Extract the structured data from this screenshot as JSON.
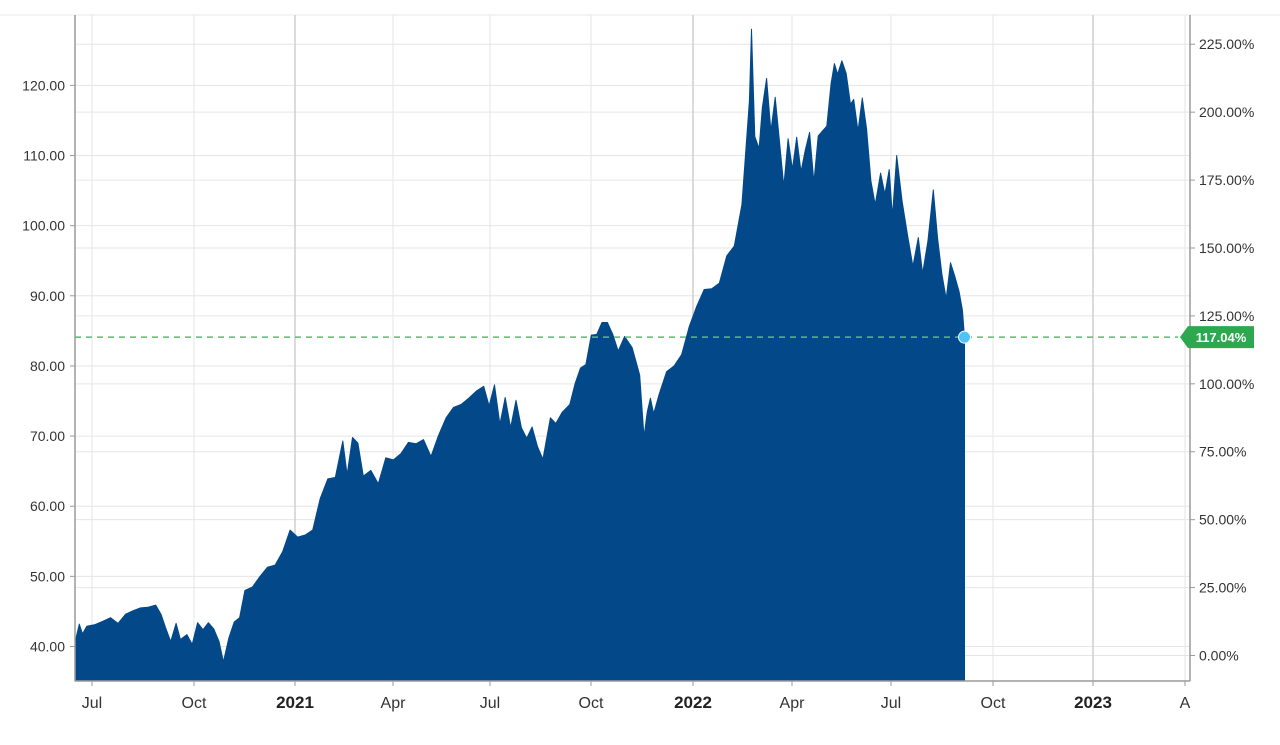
{
  "chart_data": {
    "type": "area",
    "title": "",
    "x_tick_labels": [
      "Jul",
      "Oct",
      "2021",
      "Apr",
      "Jul",
      "Oct",
      "2022",
      "Apr",
      "Jul",
      "Oct",
      "2023",
      "A"
    ],
    "y_left": {
      "ticks": [
        "40.00",
        "50.00",
        "60.00",
        "70.00",
        "80.00",
        "90.00",
        "100.00",
        "110.00",
        "120.00"
      ],
      "range": [
        35.3,
        130.6
      ]
    },
    "y_right": {
      "ticks": [
        "0.00%",
        "25.00%",
        "50.00%",
        "75.00%",
        "100.00%",
        "125.00%",
        "150.00%",
        "175.00%",
        "200.00%",
        "225.00%"
      ],
      "range": [
        -9.2,
        235.6
      ]
    },
    "x_range": [
      "2020-06-19",
      "2023-04-17"
    ],
    "series": [
      {
        "color": "#03498a",
        "points": [
          [
            "2020-06-19",
            40.6
          ],
          [
            "2020-06-23",
            43.2
          ],
          [
            "2020-06-26",
            41.8
          ],
          [
            "2020-06-30",
            42.9
          ],
          [
            "2020-07-07",
            43.1
          ],
          [
            "2020-07-15",
            43.6
          ],
          [
            "2020-07-22",
            44.1
          ],
          [
            "2020-07-29",
            43.3
          ],
          [
            "2020-08-05",
            44.6
          ],
          [
            "2020-08-12",
            45.1
          ],
          [
            "2020-08-19",
            45.5
          ],
          [
            "2020-08-26",
            45.6
          ],
          [
            "2020-09-02",
            45.9
          ],
          [
            "2020-09-07",
            44.6
          ],
          [
            "2020-09-11",
            42.8
          ],
          [
            "2020-09-16",
            40.7
          ],
          [
            "2020-09-21",
            43.3
          ],
          [
            "2020-09-25",
            41.0
          ],
          [
            "2020-10-01",
            41.7
          ],
          [
            "2020-10-06",
            40.3
          ],
          [
            "2020-10-11",
            43.4
          ],
          [
            "2020-10-16",
            42.4
          ],
          [
            "2020-10-21",
            43.4
          ],
          [
            "2020-10-26",
            42.5
          ],
          [
            "2020-10-31",
            40.7
          ],
          [
            "2020-11-04",
            37.8
          ],
          [
            "2020-11-09",
            41.2
          ],
          [
            "2020-11-14",
            43.5
          ],
          [
            "2020-11-19",
            44.1
          ],
          [
            "2020-11-24",
            48.0
          ],
          [
            "2020-12-01",
            48.5
          ],
          [
            "2020-12-08",
            50.0
          ],
          [
            "2020-12-15",
            51.3
          ],
          [
            "2020-12-22",
            51.6
          ],
          [
            "2020-12-29",
            53.5
          ],
          [
            "2021-01-05",
            56.6
          ],
          [
            "2021-01-12",
            55.6
          ],
          [
            "2021-01-19",
            55.9
          ],
          [
            "2021-01-26",
            56.6
          ],
          [
            "2021-02-02",
            61.1
          ],
          [
            "2021-02-09",
            63.9
          ],
          [
            "2021-02-16",
            64.1
          ],
          [
            "2021-02-23",
            69.3
          ],
          [
            "2021-02-27",
            64.5
          ],
          [
            "2021-03-04",
            69.8
          ],
          [
            "2021-03-09",
            69.0
          ],
          [
            "2021-03-14",
            64.3
          ],
          [
            "2021-03-21",
            65.1
          ],
          [
            "2021-03-28",
            63.2
          ],
          [
            "2021-04-04",
            66.9
          ],
          [
            "2021-04-11",
            66.6
          ],
          [
            "2021-04-18",
            67.5
          ],
          [
            "2021-04-25",
            69.1
          ],
          [
            "2021-05-02",
            68.9
          ],
          [
            "2021-05-09",
            69.5
          ],
          [
            "2021-05-16",
            67.1
          ],
          [
            "2021-05-23",
            70.1
          ],
          [
            "2021-05-30",
            72.6
          ],
          [
            "2021-06-06",
            74.1
          ],
          [
            "2021-06-13",
            74.5
          ],
          [
            "2021-06-20",
            75.4
          ],
          [
            "2021-06-27",
            76.4
          ],
          [
            "2021-07-04",
            77.1
          ],
          [
            "2021-07-09",
            74.3
          ],
          [
            "2021-07-14",
            77.3
          ],
          [
            "2021-07-19",
            71.7
          ],
          [
            "2021-07-24",
            75.5
          ],
          [
            "2021-07-29",
            71.2
          ],
          [
            "2021-08-03",
            75.1
          ],
          [
            "2021-08-08",
            71.2
          ],
          [
            "2021-08-13",
            69.7
          ],
          [
            "2021-08-18",
            71.3
          ],
          [
            "2021-08-23",
            68.5
          ],
          [
            "2021-08-28",
            66.7
          ],
          [
            "2021-09-04",
            72.6
          ],
          [
            "2021-09-09",
            71.8
          ],
          [
            "2021-09-15",
            73.4
          ],
          [
            "2021-09-22",
            74.5
          ],
          [
            "2021-09-27",
            77.5
          ],
          [
            "2021-10-02",
            79.7
          ],
          [
            "2021-10-07",
            80.2
          ],
          [
            "2021-10-12",
            84.4
          ],
          [
            "2021-10-17",
            84.5
          ],
          [
            "2021-10-22",
            86.2
          ],
          [
            "2021-10-27",
            86.2
          ],
          [
            "2021-11-01",
            84.5
          ],
          [
            "2021-11-06",
            82.1
          ],
          [
            "2021-11-12",
            84.2
          ],
          [
            "2021-11-19",
            82.6
          ],
          [
            "2021-11-26",
            78.7
          ],
          [
            "2021-11-30",
            69.9
          ],
          [
            "2021-12-03",
            73.4
          ],
          [
            "2021-12-06",
            75.4
          ],
          [
            "2021-12-09",
            73.2
          ],
          [
            "2021-12-14",
            75.9
          ],
          [
            "2021-12-21",
            79.2
          ],
          [
            "2021-12-28",
            80.0
          ],
          [
            "2022-01-04",
            81.6
          ],
          [
            "2022-01-11",
            85.6
          ],
          [
            "2022-01-18",
            88.5
          ],
          [
            "2022-01-25",
            90.9
          ],
          [
            "2022-02-01",
            91.0
          ],
          [
            "2022-02-08",
            91.8
          ],
          [
            "2022-02-15",
            95.7
          ],
          [
            "2022-02-22",
            97.1
          ],
          [
            "2022-03-01",
            103.0
          ],
          [
            "2022-03-08",
            117.8
          ],
          [
            "2022-03-10",
            128.0
          ],
          [
            "2022-03-13",
            112.7
          ],
          [
            "2022-03-17",
            111.0
          ],
          [
            "2022-03-20",
            116.8
          ],
          [
            "2022-03-24",
            121.0
          ],
          [
            "2022-03-28",
            113.5
          ],
          [
            "2022-04-01",
            118.3
          ],
          [
            "2022-04-05",
            112.0
          ],
          [
            "2022-04-09",
            105.6
          ],
          [
            "2022-04-13",
            112.4
          ],
          [
            "2022-04-17",
            108.0
          ],
          [
            "2022-04-21",
            112.6
          ],
          [
            "2022-04-25",
            107.7
          ],
          [
            "2022-04-29",
            110.8
          ],
          [
            "2022-05-03",
            113.3
          ],
          [
            "2022-05-07",
            106.2
          ],
          [
            "2022-05-11",
            112.8
          ],
          [
            "2022-05-15",
            113.5
          ],
          [
            "2022-05-19",
            114.2
          ],
          [
            "2022-05-23",
            120.3
          ],
          [
            "2022-05-26",
            123.1
          ],
          [
            "2022-05-29",
            121.6
          ],
          [
            "2022-06-02",
            123.5
          ],
          [
            "2022-06-06",
            121.7
          ],
          [
            "2022-06-10",
            117.3
          ],
          [
            "2022-06-13",
            118.0
          ],
          [
            "2022-06-17",
            113.5
          ],
          [
            "2022-06-21",
            118.2
          ],
          [
            "2022-06-25",
            113.8
          ],
          [
            "2022-06-29",
            106.4
          ],
          [
            "2022-07-03",
            103.0
          ],
          [
            "2022-07-08",
            107.5
          ],
          [
            "2022-07-12",
            104.5
          ],
          [
            "2022-07-16",
            108.0
          ],
          [
            "2022-07-19",
            101.3
          ],
          [
            "2022-07-23",
            110.0
          ],
          [
            "2022-07-28",
            103.5
          ],
          [
            "2022-08-02",
            98.7
          ],
          [
            "2022-08-07",
            94.2
          ],
          [
            "2022-08-12",
            98.3
          ],
          [
            "2022-08-16",
            93.2
          ],
          [
            "2022-08-21",
            97.8
          ],
          [
            "2022-08-26",
            105.1
          ],
          [
            "2022-08-30",
            98.2
          ],
          [
            "2022-09-03",
            93.1
          ],
          [
            "2022-09-07",
            89.6
          ],
          [
            "2022-09-11",
            94.7
          ],
          [
            "2022-09-15",
            92.8
          ],
          [
            "2022-09-19",
            90.6
          ],
          [
            "2022-09-22",
            88.0
          ],
          [
            "2022-09-24",
            84.1
          ]
        ]
      }
    ],
    "current_value_label": "117.04%",
    "grid": true,
    "colors": {
      "area": "#03498a",
      "reference_line": "#5dbb73",
      "badge": "#2ea84f",
      "marker": "#4fc3f7"
    }
  }
}
